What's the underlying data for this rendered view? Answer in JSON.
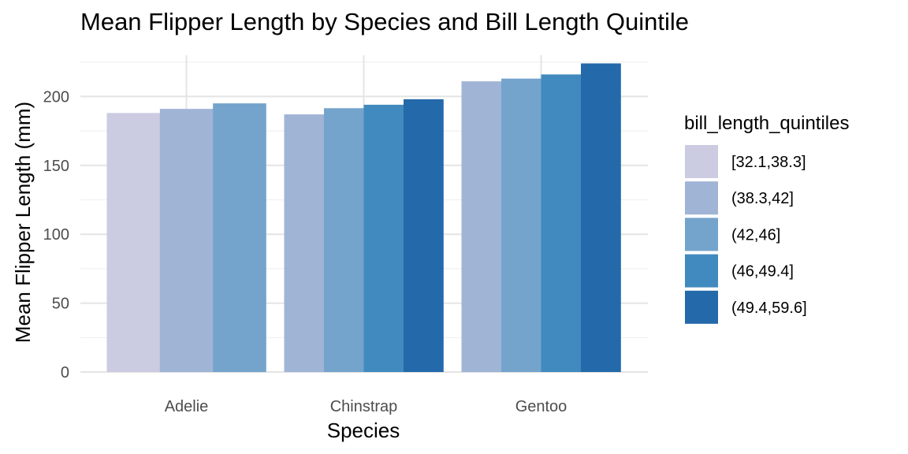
{
  "chart_data": {
    "type": "bar",
    "title": "Mean Flipper Length by Species and Bill Length Quintile",
    "xlabel": "Species",
    "ylabel": "Mean Flipper Length (mm)",
    "ylim": [
      0,
      225
    ],
    "yticks": [
      0,
      50,
      100,
      150,
      200
    ],
    "grid": true,
    "categories": [
      "Adelie",
      "Chinstrap",
      "Gentoo"
    ],
    "legend": {
      "title": "bill_length_quintiles",
      "position": "right"
    },
    "series": [
      {
        "name": "[32.1,38.3]",
        "color": "#cbcbe2",
        "values": [
          188,
          null,
          null
        ]
      },
      {
        "name": "(38.3,42]",
        "color": "#a0b4d6",
        "values": [
          191,
          187,
          211
        ]
      },
      {
        "name": "(42,46]",
        "color": "#74a4cc",
        "values": [
          195,
          191.5,
          213
        ]
      },
      {
        "name": "(46,49.4]",
        "color": "#418abf",
        "values": [
          null,
          194,
          216
        ]
      },
      {
        "name": "(49.4,59.6]",
        "color": "#2469aa",
        "values": [
          null,
          198,
          224
        ]
      }
    ]
  }
}
